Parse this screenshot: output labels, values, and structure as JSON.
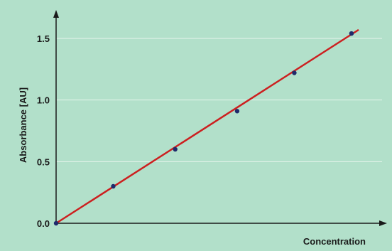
{
  "chart_data": {
    "type": "scatter",
    "xlabel": "Concentration",
    "ylabel": "Absorbance [AU]",
    "ylim": [
      0,
      1.6
    ],
    "xlim": [
      0,
      1.27
    ],
    "y_ticks": [
      "0.0",
      "0.5",
      "1.0",
      "1.5"
    ],
    "grid": "horizontal",
    "colors": {
      "background": "#b2e0ca",
      "grid": "#e6f4ec",
      "axis": "#1a1a1a",
      "fit_line": "#cc1f1f",
      "points": "#1f2a6b"
    },
    "series": [
      {
        "x": [
          0,
          0.24,
          0.5,
          0.76,
          1.0,
          1.24
        ],
        "y": [
          0.0,
          0.3,
          0.6,
          0.91,
          1.22,
          1.54
        ]
      }
    ],
    "fit_line": {
      "x": [
        0,
        1.27
      ],
      "y": [
        0,
        1.57
      ]
    }
  }
}
